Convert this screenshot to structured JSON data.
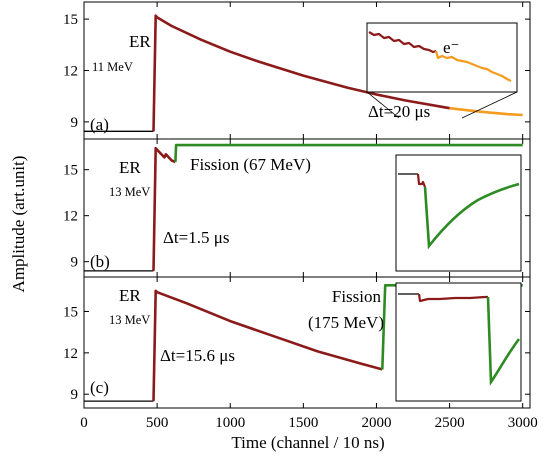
{
  "chart_data": {
    "type": "line",
    "xlabel": "Time (channel / 10 ns)",
    "ylabel": "Amplitude (art.unit)",
    "xlim": [
      0,
      3050
    ],
    "x_ticks": [
      "0",
      "500",
      "1000",
      "1500",
      "2000",
      "2500",
      "3000"
    ],
    "colors": {
      "er": "#8b1a1a",
      "fission": "#2e8b23",
      "electron": "#f39c1e",
      "baseline": "#000000"
    },
    "panels": [
      {
        "id": "a",
        "panel_label": "(a)",
        "ylim": [
          8,
          16
        ],
        "y_ticks": [
          "9",
          "12",
          "15"
        ],
        "er_label": "ER",
        "energy_label": "11 MeV",
        "dt_label": "Δt=20 μs",
        "inset_label": "e⁻",
        "series": [
          {
            "kind": "baseline",
            "x": [
              0,
              475
            ],
            "y": [
              8.45,
              8.45
            ]
          },
          {
            "kind": "er",
            "x": [
              475,
              490,
              500,
              600,
              800,
              1000,
              1200,
              1500,
              1800,
              2000,
              2200,
              2500
            ],
            "y": [
              8.45,
              15.2,
              15.1,
              14.6,
              13.8,
              13.1,
              12.5,
              11.7,
              11.0,
              10.6,
              10.25,
              9.8
            ]
          },
          {
            "kind": "electron",
            "x": [
              2500,
              2700,
              2900,
              3000
            ],
            "y": [
              9.8,
              9.6,
              9.45,
              9.4
            ]
          }
        ]
      },
      {
        "id": "b",
        "panel_label": "(b)",
        "ylim": [
          8,
          17
        ],
        "y_ticks": [
          "9",
          "12",
          "15"
        ],
        "er_label": "ER",
        "energy_label": "13 MeV",
        "dt_label": "Δt=1.5 μs",
        "fission_label": "Fission (67 MeV)",
        "series": [
          {
            "kind": "baseline",
            "x": [
              0,
              475
            ],
            "y": [
              8.4,
              8.4
            ]
          },
          {
            "kind": "er",
            "x": [
              475,
              490,
              500,
              550,
              560,
              600,
              625
            ],
            "y": [
              8.4,
              16.4,
              16.3,
              15.8,
              16.0,
              15.6,
              15.5
            ]
          },
          {
            "kind": "fission",
            "x": [
              625,
              630,
              3000
            ],
            "y": [
              15.5,
              16.6,
              16.6
            ]
          }
        ]
      },
      {
        "id": "c",
        "panel_label": "(c)",
        "ylim": [
          8,
          17.5
        ],
        "y_ticks": [
          "9",
          "12",
          "15"
        ],
        "er_label": "ER",
        "energy_label": "13 MeV",
        "dt_label": "Δt=15.6 μs",
        "fission_label_line1": "Fission",
        "fission_label_line2": "(175 MeV)",
        "series": [
          {
            "kind": "baseline",
            "x": [
              0,
              475
            ],
            "y": [
              8.5,
              8.5
            ]
          },
          {
            "kind": "er",
            "x": [
              475,
              490,
              500,
              700,
              1000,
              1300,
              1600,
              1900,
              2040
            ],
            "y": [
              8.5,
              16.5,
              16.4,
              15.6,
              14.3,
              13.2,
              12.1,
              11.2,
              10.8
            ]
          },
          {
            "kind": "fission",
            "x": [
              2040,
              2060,
              3000
            ],
            "y": [
              10.8,
              16.9,
              16.9
            ]
          }
        ]
      }
    ]
  }
}
